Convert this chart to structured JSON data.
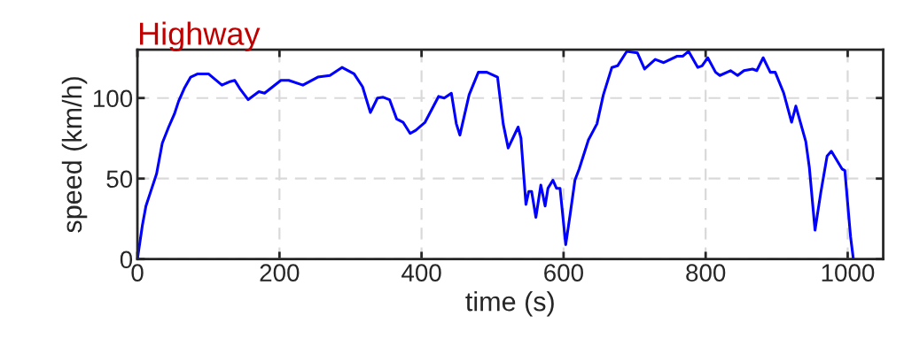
{
  "chart_data": {
    "type": "line",
    "title": "Highway",
    "xlabel": "time (s)",
    "ylabel": "speed (km/h)",
    "x": [
      0,
      7,
      12,
      18,
      27,
      35,
      44,
      52,
      58,
      66,
      75,
      85,
      100,
      119,
      129,
      137,
      144,
      156,
      171,
      179,
      202,
      213,
      233,
      254,
      271,
      288,
      305,
      317,
      328,
      338,
      346,
      355,
      365,
      374,
      384,
      392,
      405,
      424,
      432,
      442,
      449,
      454,
      467,
      480,
      492,
      507,
      515,
      522,
      536,
      540,
      547,
      551,
      555,
      561,
      568,
      574,
      578,
      585,
      590,
      595,
      603,
      609,
      616,
      622,
      635,
      647,
      656,
      668,
      676,
      689,
      704,
      714,
      729,
      741,
      760,
      768,
      776,
      789,
      795,
      803,
      814,
      820,
      835,
      845,
      854,
      866,
      872,
      881,
      891,
      898,
      910,
      921,
      927,
      941,
      946,
      954,
      962,
      971,
      977,
      992,
      996,
      1004,
      1008
    ],
    "series": [
      {
        "color": "#0000ff",
        "values": [
          0,
          21,
          33,
          41,
          53,
          72,
          82,
          90,
          98,
          106,
          113,
          115,
          115,
          108,
          110,
          111,
          106,
          99,
          104,
          103,
          111,
          111,
          108,
          113,
          114,
          119,
          115,
          107,
          91,
          100,
          100.5,
          99,
          87,
          85,
          78,
          80,
          85,
          101,
          100,
          103,
          84,
          77,
          102,
          116,
          116,
          113,
          84,
          69,
          82,
          75,
          34,
          42,
          42,
          26,
          46,
          33,
          44,
          49,
          44,
          44,
          9,
          27,
          49,
          56,
          74,
          84,
          102,
          119,
          120,
          129,
          128,
          118,
          124,
          122,
          126,
          126,
          129,
          119,
          120,
          125,
          116,
          114,
          117,
          114,
          117,
          118,
          117,
          125,
          116,
          116,
          103,
          85,
          95,
          73,
          57,
          18,
          41,
          64,
          67,
          56,
          55,
          14,
          0
        ]
      }
    ],
    "xlim": [
      0,
      1050
    ],
    "ylim": [
      0,
      130
    ],
    "xticks": [
      0,
      200,
      400,
      600,
      800,
      1000
    ],
    "yticks": [
      0,
      50,
      100
    ],
    "grid": true,
    "line_style": "solid",
    "marker": "none"
  }
}
